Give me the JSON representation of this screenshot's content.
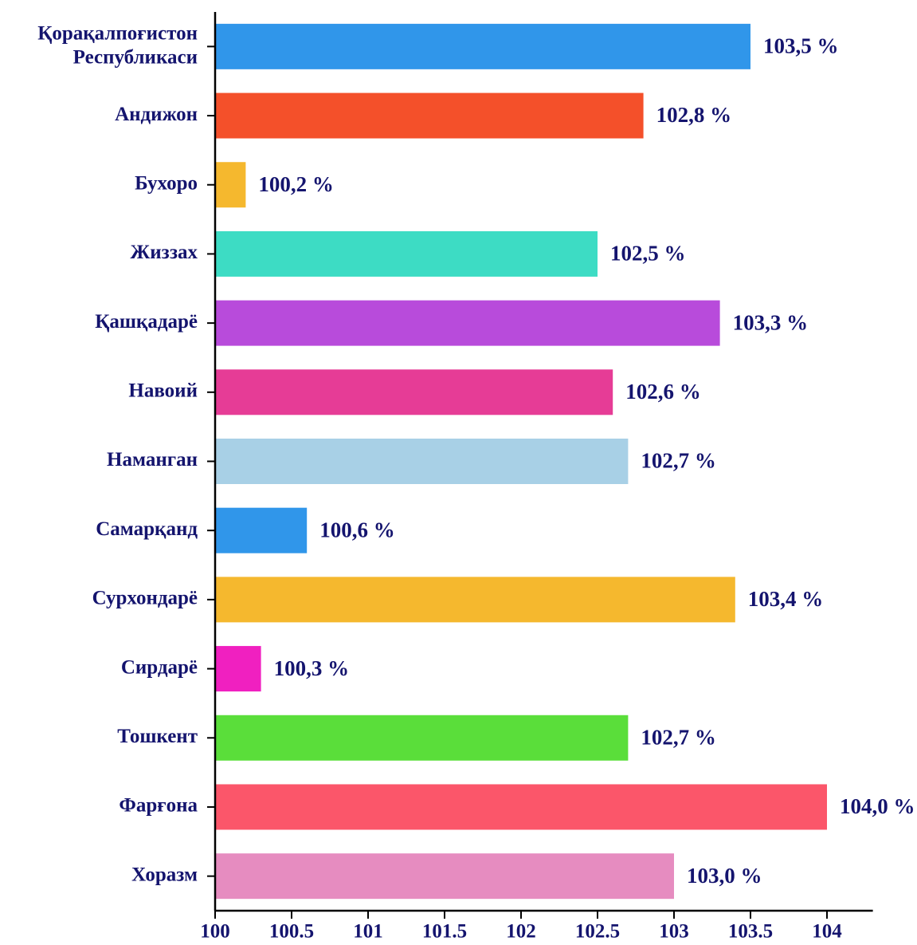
{
  "chart_data": {
    "type": "bar",
    "orientation": "horizontal",
    "categories": [
      "Қорақалпоғистон Республикаси",
      "Андижон",
      "Бухоро",
      "Жиззах",
      "Қашқадарё",
      "Навоий",
      "Наманган",
      "Самарқанд",
      "Сурхондарё",
      "Сирдарё",
      "Тошкент",
      "Фарғона",
      "Хоразм"
    ],
    "values": [
      103.5,
      102.8,
      100.2,
      102.5,
      103.3,
      102.6,
      102.7,
      100.6,
      103.4,
      100.3,
      102.7,
      104.0,
      103.0
    ],
    "value_labels": [
      "103,5 %",
      "102,8 %",
      "100,2 %",
      "102,5 %",
      "103,3 %",
      "102,6 %",
      "102,7 %",
      "100,6 %",
      "103,4 %",
      "100,3 %",
      "102,7 %",
      "104,0 %",
      "103,0 %"
    ],
    "colors": [
      "#3096ea",
      "#f4502a",
      "#f5b82e",
      "#3ddcc4",
      "#b84bdb",
      "#e63c96",
      "#a8d0e6",
      "#3096ea",
      "#f5b82e",
      "#f020c0",
      "#5ade3a",
      "#fb566a",
      "#e68cc0"
    ],
    "xlim": [
      100,
      104.3
    ],
    "xticks": [
      100,
      100.5,
      101,
      101.5,
      102,
      102.5,
      103,
      103.5,
      104
    ]
  }
}
